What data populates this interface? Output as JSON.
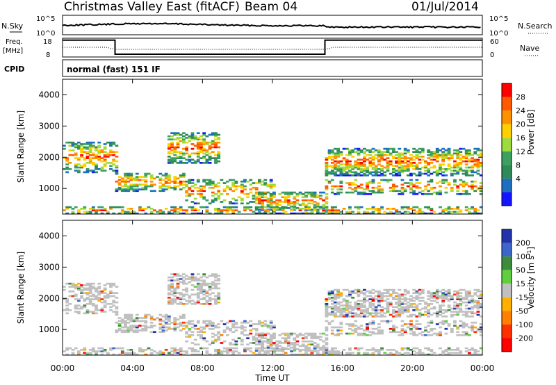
{
  "header": {
    "site": "Christmas Valley East (fitACF)",
    "beam": "Beam 04",
    "date": "01/Jul/2014"
  },
  "panels": {
    "nsky_label": "N.Sky",
    "nsearch_label": "N.Search",
    "freq_label_1": "Freq.",
    "freq_label_2": "[MHz]",
    "nave_label": "Nave",
    "cpid_label": "CPID",
    "cpid_value": "normal (fast) 151 IF",
    "noise_ticks_left": [
      "10^5",
      "10^0"
    ],
    "noise_ticks_right": [
      "10^5",
      "10^0"
    ],
    "freq_ticks": [
      "18",
      "8"
    ],
    "nave_ticks": [
      "60",
      "0"
    ]
  },
  "chart_data": [
    {
      "type": "line",
      "title": "Frequency / Nave",
      "x": [
        "00:00",
        "03:00",
        "03:00",
        "15:00",
        "15:00",
        "24:00"
      ],
      "series": [
        {
          "name": "Freq.",
          "values": [
            17,
            17,
            9.5,
            9.5,
            17,
            17
          ]
        }
      ],
      "ylim": [
        8,
        18
      ]
    },
    {
      "type": "heatmap",
      "title": "Power",
      "xlabel": "Time UT",
      "ylabel": "Slant Range [km]",
      "x_ticks": [
        "00:00",
        "04:00",
        "08:00",
        "12:00",
        "16:00",
        "20:00",
        "00:00"
      ],
      "y_ticks": [
        "1000",
        "2000",
        "3000",
        "4000"
      ],
      "ylim": [
        180,
        4500
      ],
      "colorbar_label": "Power [dB]",
      "colorbar_ticks": [
        "28",
        "24",
        "20",
        "16",
        "12",
        "8",
        "4"
      ],
      "colorbar_colors": [
        "#ff0000",
        "#ff5a00",
        "#ff9000",
        "#ffd000",
        "#9edb3c",
        "#3ca060",
        "#2e8b57",
        "#1f6fc0",
        "#1414ff"
      ]
    },
    {
      "type": "heatmap",
      "title": "Velocity",
      "xlabel": "Time UT",
      "ylabel": "Slant Range [km]",
      "x_ticks": [
        "00:00",
        "04:00",
        "08:00",
        "12:00",
        "16:00",
        "20:00",
        "00:00"
      ],
      "y_ticks": [
        "1000",
        "2000",
        "3000",
        "4000"
      ],
      "ylim": [
        180,
        4500
      ],
      "colorbar_label": "Velocity [m s-1]",
      "colorbar_ticks": [
        "200",
        "100",
        "50",
        "15",
        "-15",
        "-50",
        "-100",
        "-200"
      ],
      "colorbar_colors": [
        "#2233aa",
        "#3c66cc",
        "#3c8c3c",
        "#5fcf3f",
        "#c0c0c0",
        "#ffb000",
        "#ff8000",
        "#ff3000",
        "#ff0000"
      ]
    }
  ],
  "axes": {
    "xlabel": "Time UT",
    "ylabel": "Slant Range [km]",
    "power_label": "Power [dB]",
    "velocity_label": "Velocity [m s",
    "velocity_sup": "-1",
    "velocity_close": "]"
  }
}
